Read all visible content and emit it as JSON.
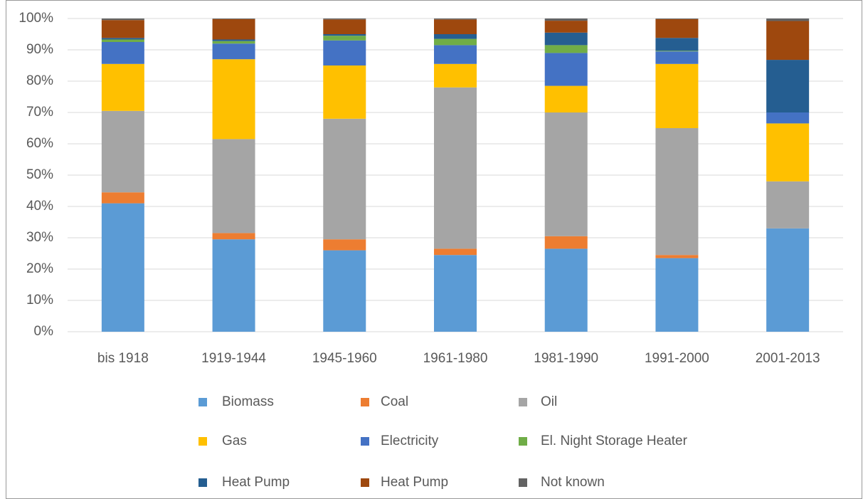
{
  "chart_data": {
    "type": "stacked_bar",
    "categories": [
      "bis 1918",
      "1919-1944",
      "1945-1960",
      "1961-1980",
      "1981-1990",
      "1991-2000",
      "2001-2013"
    ],
    "series": [
      {
        "name": "Biomass",
        "color": "#5b9bd5",
        "values": [
          41,
          29.5,
          26,
          24.5,
          26.5,
          23.5,
          33
        ]
      },
      {
        "name": "Coal",
        "color": "#ed7d31",
        "values": [
          3.5,
          2,
          3.5,
          2,
          4,
          1,
          0
        ]
      },
      {
        "name": "Oil",
        "color": "#a5a5a5",
        "values": [
          26,
          30,
          38.5,
          51.5,
          39.5,
          40.5,
          15
        ]
      },
      {
        "name": "Gas",
        "color": "#ffc000",
        "values": [
          15,
          25.5,
          17,
          7.5,
          8.5,
          20.5,
          18.5
        ]
      },
      {
        "name": "Electricity",
        "color": "#4472c4",
        "values": [
          7,
          5,
          8,
          6,
          10.5,
          4,
          3.5
        ]
      },
      {
        "name": "El. Night Storage Heater",
        "color": "#70ad47",
        "values": [
          0.8,
          0.8,
          1.5,
          2,
          2.5,
          0.2,
          0
        ]
      },
      {
        "name": "Heat Pump",
        "color": "#255e91",
        "values": [
          0.5,
          0.5,
          0.5,
          1.5,
          4,
          4.1,
          16.8
        ]
      },
      {
        "name": "Heat Pump",
        "color": "#9e480e",
        "values": [
          5.7,
          6.5,
          4.7,
          4.7,
          3.8,
          6,
          12.4
        ]
      },
      {
        "name": "Not known",
        "color": "#636363",
        "values": [
          0.5,
          0.2,
          0.3,
          0.3,
          0.7,
          0.2,
          0.8
        ]
      }
    ],
    "ylim": [
      0,
      100
    ],
    "yticks": [
      {
        "value": 0,
        "label": "0%"
      },
      {
        "value": 10,
        "label": "10%"
      },
      {
        "value": 20,
        "label": "20%"
      },
      {
        "value": 30,
        "label": "30%"
      },
      {
        "value": 40,
        "label": "40%"
      },
      {
        "value": 50,
        "label": "50%"
      },
      {
        "value": 60,
        "label": "60%"
      },
      {
        "value": 70,
        "label": "70%"
      },
      {
        "value": 80,
        "label": "80%"
      },
      {
        "value": 90,
        "label": "90%"
      },
      {
        "value": 100,
        "label": "100%"
      }
    ],
    "grid": true,
    "legend": "bottom"
  }
}
